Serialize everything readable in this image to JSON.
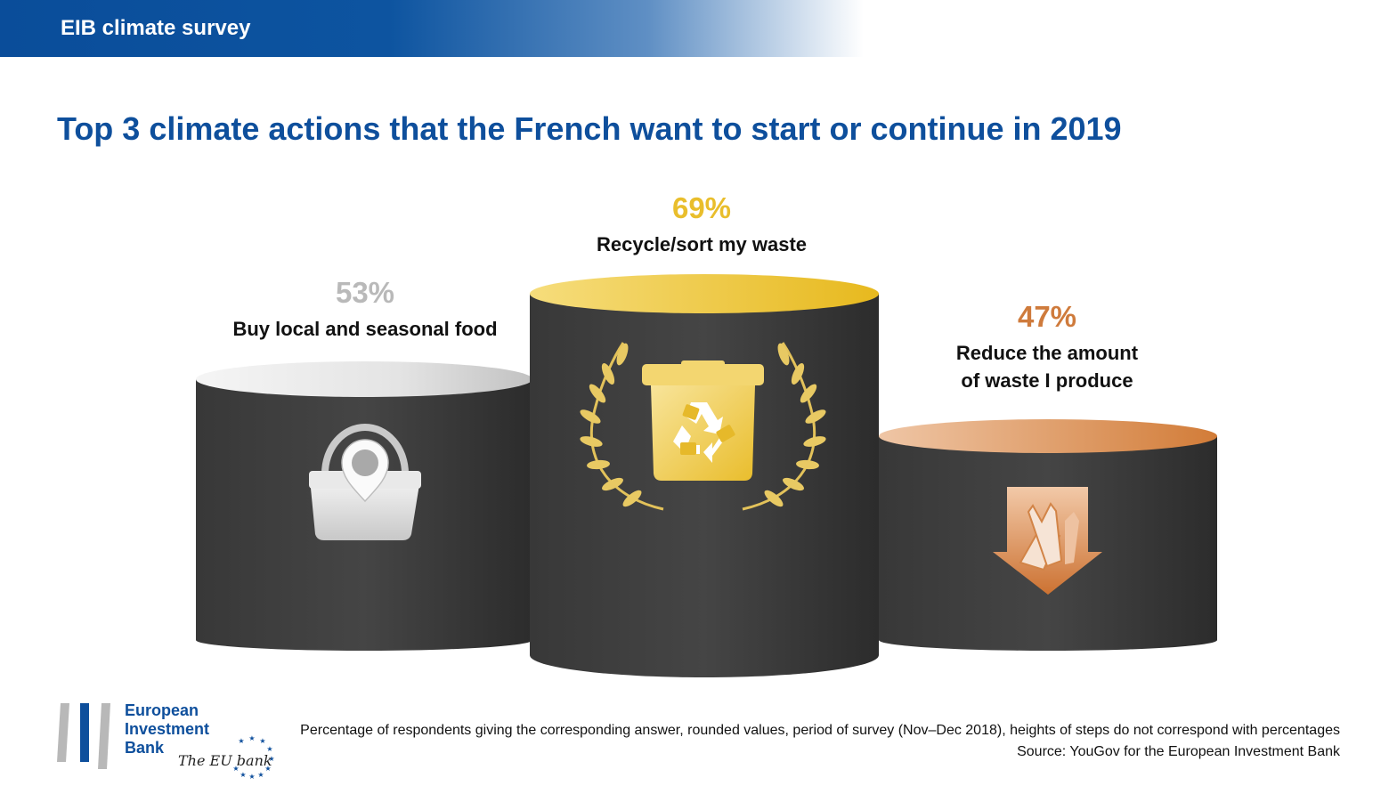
{
  "header": {
    "banner_title": "EIB climate survey"
  },
  "main": {
    "title": "Top 3 climate actions that the French want to start or continue in 2019"
  },
  "chart_data": {
    "type": "bar",
    "title": "Top 3 climate actions that the French want to start or continue in 2019",
    "categories": [
      "Buy local and seasonal food",
      "Recycle/sort my waste",
      "Reduce the amount of waste I produce"
    ],
    "values": [
      53,
      69,
      47
    ],
    "value_labels": [
      "53%",
      "69%",
      "47%"
    ],
    "label_lines": [
      [
        "Buy local and seasonal food"
      ],
      [
        "Recycle/sort my waste"
      ],
      [
        "Reduce the amount",
        "of waste I produce"
      ]
    ],
    "ranks": [
      2,
      1,
      3
    ],
    "colors": [
      "#b9b9b9",
      "#e9be2c",
      "#cf7b3c"
    ],
    "icons": [
      "basket-icon",
      "recycle-bin-icon",
      "reduce-waste-arrow-icon"
    ],
    "unit": "%"
  },
  "footer": {
    "logo": {
      "line1": "European",
      "line2": "Investment",
      "line3": "Bank",
      "tagline": "The EU bank"
    },
    "note": "Percentage of respondents giving the corresponding answer, rounded values, period of survey (Nov–Dec 2018), heights of steps do not correspond with percentages",
    "source": "Source: YouGov for the European Investment Bank"
  }
}
